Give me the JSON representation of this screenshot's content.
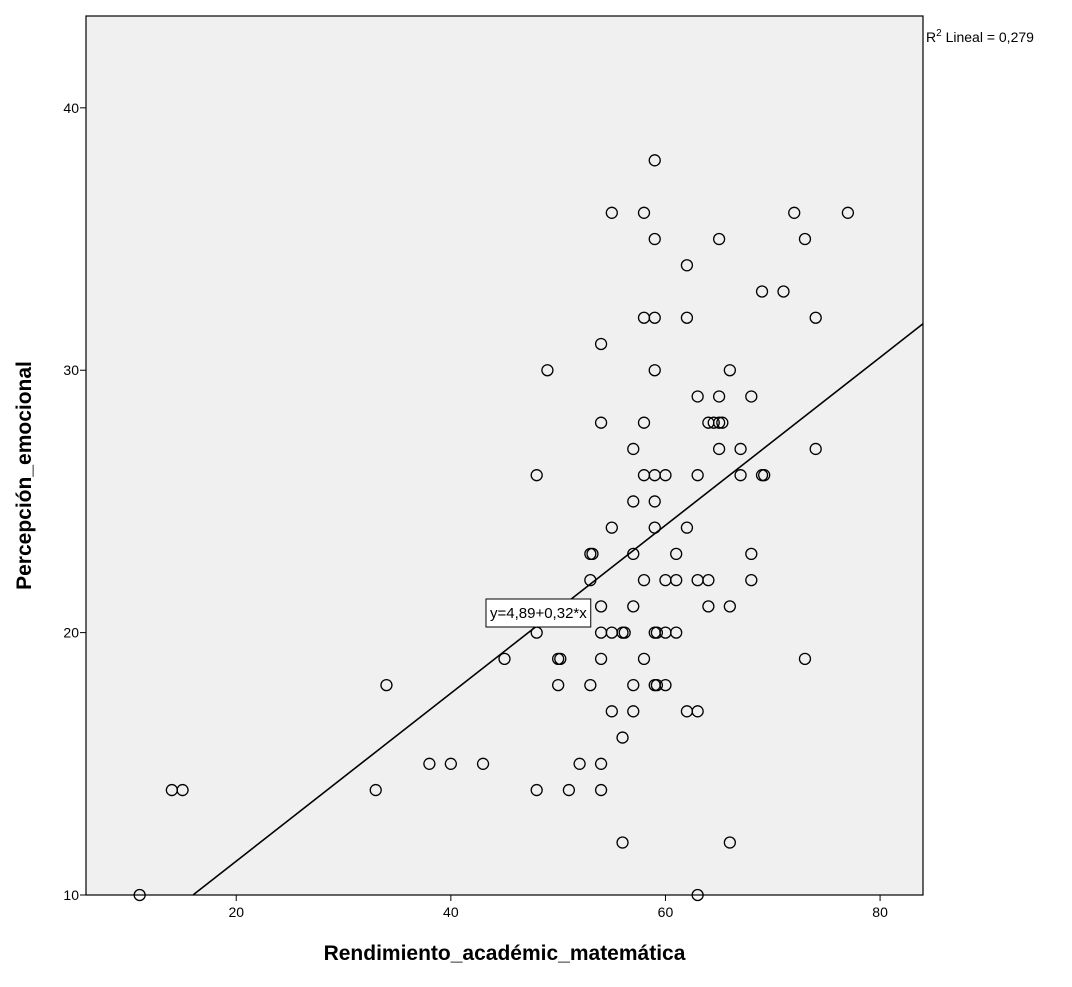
{
  "chart_data": {
    "type": "scatter",
    "xlabel": "Rendimiento_académic_matemática",
    "ylabel": "Percepción_emocional",
    "xlim": [
      6,
      84
    ],
    "ylim": [
      10,
      43.5
    ],
    "x_ticks": [
      20,
      40,
      60,
      80
    ],
    "y_ticks": [
      10,
      20,
      30,
      40
    ],
    "grid": false,
    "plot_background": "#f0f0f0",
    "marker": "open-circle",
    "points": [
      [
        59,
        38
      ],
      [
        55,
        36
      ],
      [
        58,
        36
      ],
      [
        72,
        36
      ],
      [
        77,
        36
      ],
      [
        59,
        35
      ],
      [
        65,
        35
      ],
      [
        73,
        35
      ],
      [
        62,
        34
      ],
      [
        69,
        33
      ],
      [
        71,
        33
      ],
      [
        58,
        32
      ],
      [
        59,
        32
      ],
      [
        62,
        32
      ],
      [
        74,
        32
      ],
      [
        54,
        31
      ],
      [
        49,
        30
      ],
      [
        59,
        30
      ],
      [
        66,
        30
      ],
      [
        63,
        29
      ],
      [
        65,
        29
      ],
      [
        68,
        29
      ],
      [
        54,
        28
      ],
      [
        58,
        28
      ],
      [
        64,
        28
      ],
      [
        64.5,
        28
      ],
      [
        65,
        28
      ],
      [
        65.3,
        28
      ],
      [
        57,
        27
      ],
      [
        65,
        27
      ],
      [
        67,
        27
      ],
      [
        74,
        27
      ],
      [
        48,
        26
      ],
      [
        58,
        26
      ],
      [
        59,
        26
      ],
      [
        60,
        26
      ],
      [
        63,
        26
      ],
      [
        67,
        26
      ],
      [
        69,
        26
      ],
      [
        69.2,
        26
      ],
      [
        57,
        25
      ],
      [
        59,
        25
      ],
      [
        55,
        24
      ],
      [
        59,
        24
      ],
      [
        62,
        24
      ],
      [
        53,
        23
      ],
      [
        53.2,
        23
      ],
      [
        57,
        23
      ],
      [
        61,
        23
      ],
      [
        68,
        23
      ],
      [
        53,
        22
      ],
      [
        58,
        22
      ],
      [
        60,
        22
      ],
      [
        61,
        22
      ],
      [
        63,
        22
      ],
      [
        64,
        22
      ],
      [
        68,
        22
      ],
      [
        54,
        21
      ],
      [
        57,
        21
      ],
      [
        64,
        21
      ],
      [
        66,
        21
      ],
      [
        48,
        20
      ],
      [
        54,
        20
      ],
      [
        55,
        20
      ],
      [
        56,
        20
      ],
      [
        56.2,
        20
      ],
      [
        59,
        20
      ],
      [
        59.2,
        20
      ],
      [
        60,
        20
      ],
      [
        61,
        20
      ],
      [
        45,
        19
      ],
      [
        50,
        19
      ],
      [
        50.2,
        19
      ],
      [
        54,
        19
      ],
      [
        58,
        19
      ],
      [
        73,
        19
      ],
      [
        34,
        18
      ],
      [
        50,
        18
      ],
      [
        53,
        18
      ],
      [
        57,
        18
      ],
      [
        59,
        18
      ],
      [
        59.2,
        18
      ],
      [
        60,
        18
      ],
      [
        55,
        17
      ],
      [
        57,
        17
      ],
      [
        62,
        17
      ],
      [
        63,
        17
      ],
      [
        56,
        16
      ],
      [
        38,
        15
      ],
      [
        40,
        15
      ],
      [
        43,
        15
      ],
      [
        52,
        15
      ],
      [
        54,
        15
      ],
      [
        14,
        14
      ],
      [
        15,
        14
      ],
      [
        33,
        14
      ],
      [
        48,
        14
      ],
      [
        51,
        14
      ],
      [
        54,
        14
      ],
      [
        56,
        12
      ],
      [
        66,
        12
      ],
      [
        11,
        10
      ],
      [
        63,
        10
      ]
    ],
    "fit_line": {
      "intercept": 4.89,
      "slope": 0.32,
      "x_range": [
        16,
        84
      ]
    },
    "annotations": {
      "equation": "y=4,89+0,32*x",
      "r2_prefix": "R",
      "r2_superscript": "2",
      "r2_suffix": " Lineal = 0,279"
    }
  }
}
